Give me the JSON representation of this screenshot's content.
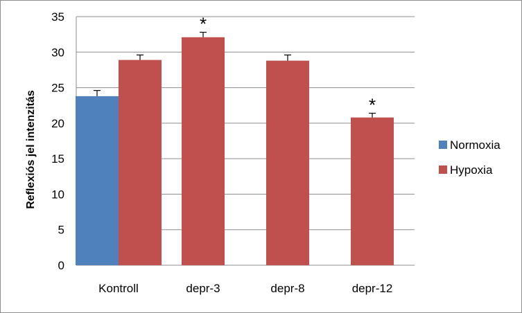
{
  "chart_data": {
    "type": "bar",
    "title": "",
    "xlabel": "",
    "ylabel": "Reflexiós jel intenzitás",
    "ylim": [
      0,
      35
    ],
    "yticks": [
      0,
      5,
      10,
      15,
      20,
      25,
      30,
      35
    ],
    "grid": true,
    "legend_position": "right",
    "categories": [
      "Kontroll",
      "depr-3",
      "depr-8",
      "depr-12"
    ],
    "series": [
      {
        "name": "Normoxia",
        "color": "#4f81bd",
        "values": [
          23.8,
          null,
          null,
          null
        ],
        "errors": [
          0.8,
          null,
          null,
          null
        ]
      },
      {
        "name": "Hypoxia",
        "color": "#c0504d",
        "values": [
          28.9,
          32.1,
          28.8,
          20.8
        ],
        "errors": [
          0.7,
          0.7,
          0.8,
          0.6
        ]
      }
    ],
    "annotations": [
      {
        "category": "depr-3",
        "text": "*"
      },
      {
        "category": "depr-12",
        "text": "*"
      }
    ]
  }
}
